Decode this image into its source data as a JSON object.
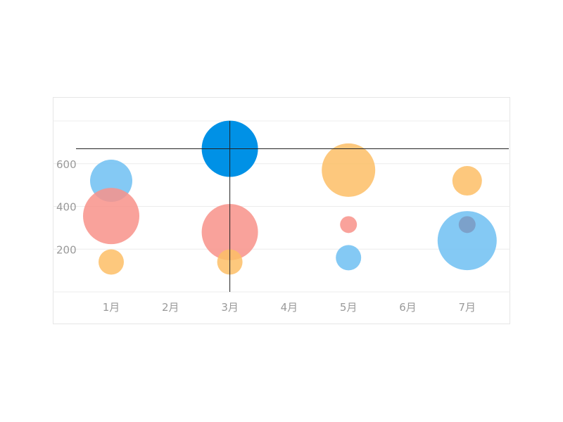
{
  "chart_data": {
    "type": "scatter",
    "categories": [
      "1月",
      "2月",
      "3月",
      "4月",
      "5月",
      "6月",
      "7月"
    ],
    "y_ticks": [
      "200",
      "400",
      "600"
    ],
    "ylim": [
      0,
      800
    ],
    "grid": true,
    "series": [
      {
        "color": "#6fbff2",
        "points": [
          {
            "category": "1月",
            "y": 520,
            "size": 30
          },
          {
            "category": "3月",
            "y": 670,
            "size": 40,
            "highlighted": true,
            "highlight_color": "#0091e6"
          },
          {
            "category": "5月",
            "y": 160,
            "size": 18
          },
          {
            "category": "7月",
            "y": 240,
            "size": 42
          }
        ]
      },
      {
        "color": "#f8928a",
        "points": [
          {
            "category": "1月",
            "y": 355,
            "size": 40
          },
          {
            "category": "3月",
            "y": 280,
            "size": 40
          },
          {
            "category": "5月",
            "y": 315,
            "size": 12
          }
        ]
      },
      {
        "color": "#fdbe66",
        "points": [
          {
            "category": "1月",
            "y": 140,
            "size": 18
          },
          {
            "category": "3月",
            "y": 140,
            "size": 18
          },
          {
            "category": "5月",
            "y": 570,
            "size": 38
          },
          {
            "category": "7月",
            "y": 520,
            "size": 21
          },
          {
            "category": "7月",
            "y": 315,
            "size": 12,
            "fill": "#7a9ac2"
          }
        ]
      }
    ],
    "crosshair": {
      "category": "3月",
      "y": 670
    }
  }
}
